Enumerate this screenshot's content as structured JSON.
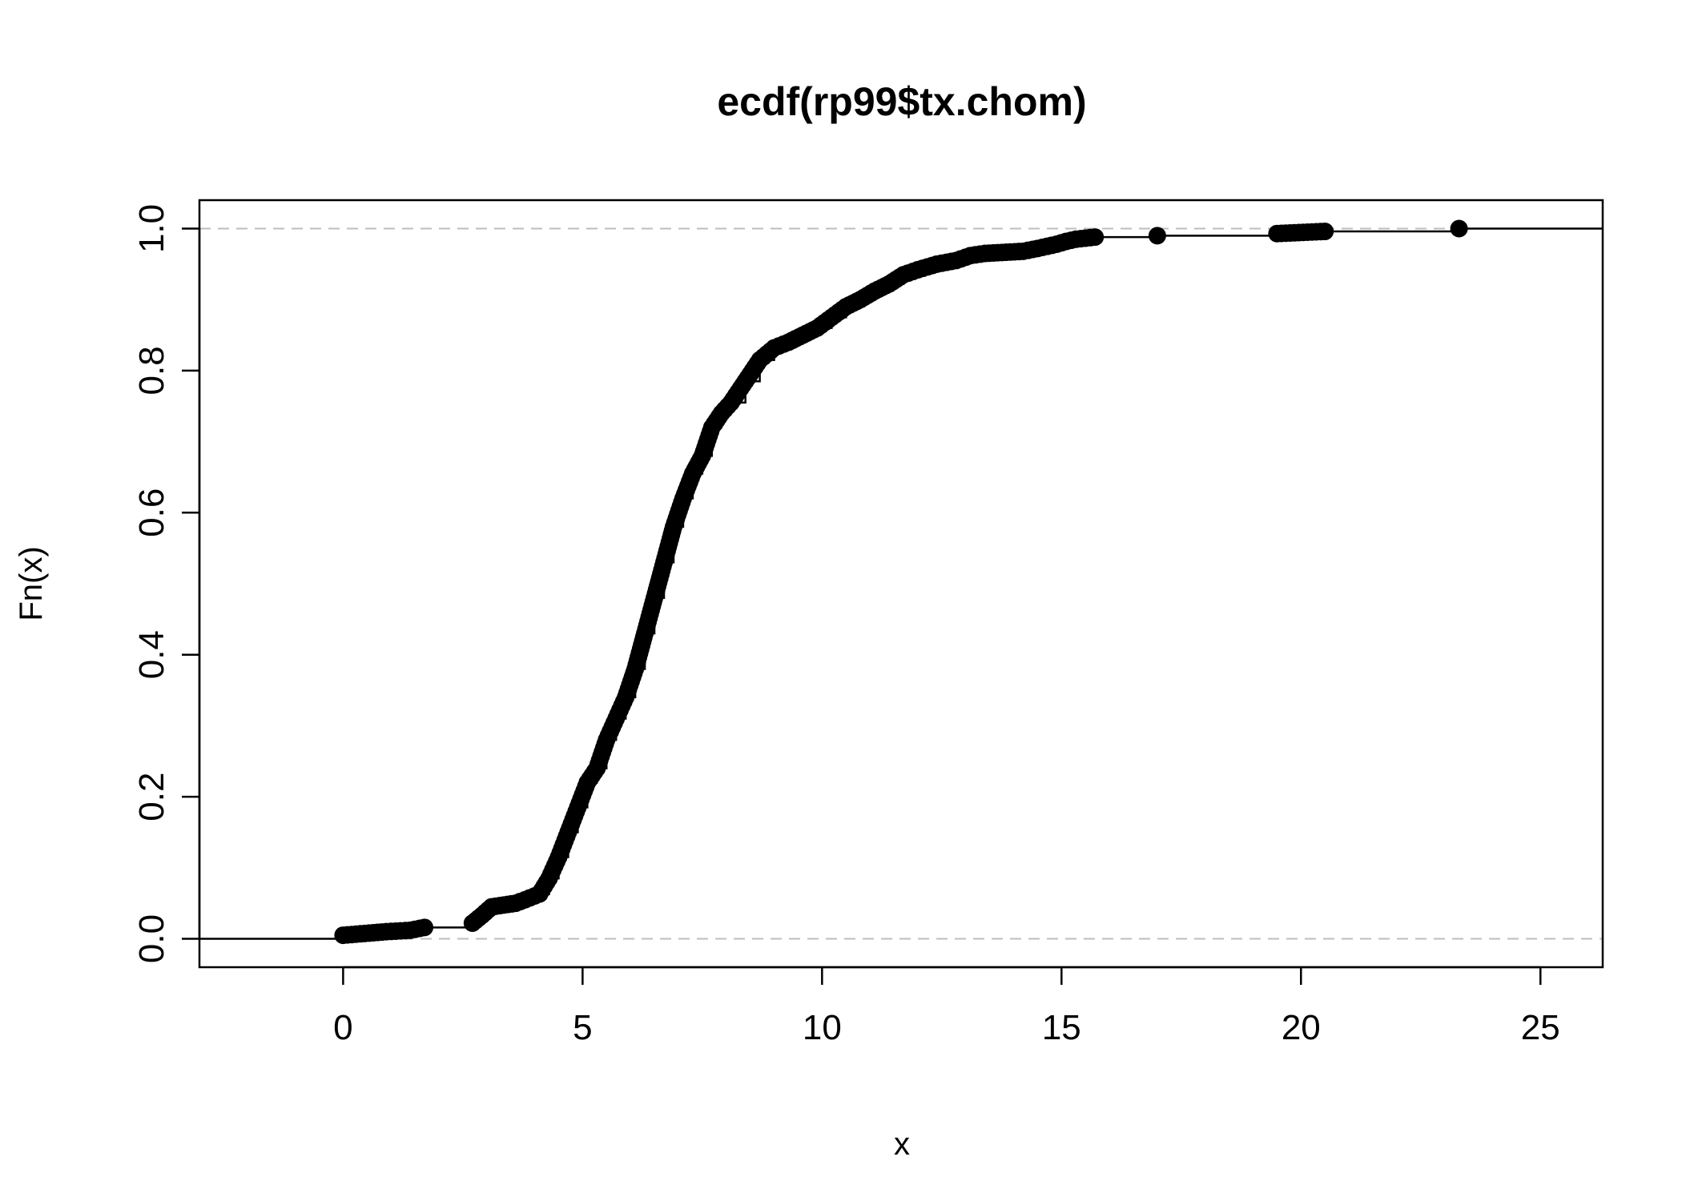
{
  "chart_data": {
    "type": "scatter",
    "title": "ecdf(rp99$tx.chom)",
    "xlabel": "x",
    "ylabel": "Fn(x)",
    "xlim": [
      -3,
      26.3
    ],
    "ylim": [
      -0.04,
      1.04
    ],
    "x_ticks": [
      0,
      5,
      10,
      15,
      20,
      25
    ],
    "y_ticks": [
      0.0,
      0.2,
      0.4,
      0.6,
      0.8,
      1.0
    ],
    "x_tick_labels": [
      "0",
      "5",
      "10",
      "15",
      "20",
      "25"
    ],
    "y_tick_labels": [
      "0.0",
      "0.2",
      "0.4",
      "0.6",
      "0.8",
      "1.0"
    ],
    "grid": false,
    "reference_lines": [
      0,
      1
    ],
    "colors": {
      "points": "#000000",
      "axes": "#000000",
      "reference": "#bebebe"
    },
    "ecdf_curve": {
      "x": [
        0.0,
        0.9,
        1.4,
        1.7,
        2.7,
        2.9,
        3.1,
        3.6,
        3.8,
        4.1,
        4.3,
        4.5,
        4.7,
        4.9,
        5.1,
        5.3,
        5.5,
        5.7,
        5.9,
        6.1,
        6.3,
        6.5,
        6.7,
        6.9,
        7.1,
        7.3,
        7.5,
        7.7,
        7.9,
        8.1,
        8.4,
        8.7,
        9.0,
        9.3,
        9.6,
        9.9,
        10.2,
        10.5,
        10.8,
        11.1,
        11.4,
        11.7,
        12.0,
        12.4,
        12.8,
        13.1,
        13.4,
        14.2,
        14.5,
        14.9,
        15.1,
        15.3,
        15.7,
        17.0,
        19.5,
        20.5,
        23.3
      ],
      "y": [
        0.005,
        0.01,
        0.012,
        0.016,
        0.022,
        0.033,
        0.045,
        0.05,
        0.055,
        0.063,
        0.085,
        0.115,
        0.15,
        0.185,
        0.22,
        0.24,
        0.28,
        0.31,
        0.34,
        0.38,
        0.43,
        0.48,
        0.53,
        0.58,
        0.62,
        0.655,
        0.68,
        0.72,
        0.74,
        0.755,
        0.785,
        0.815,
        0.832,
        0.84,
        0.85,
        0.86,
        0.875,
        0.89,
        0.9,
        0.912,
        0.922,
        0.935,
        0.942,
        0.95,
        0.955,
        0.962,
        0.965,
        0.968,
        0.972,
        0.978,
        0.982,
        0.985,
        0.988,
        0.99,
        0.993,
        0.996,
        1.0
      ]
    }
  }
}
